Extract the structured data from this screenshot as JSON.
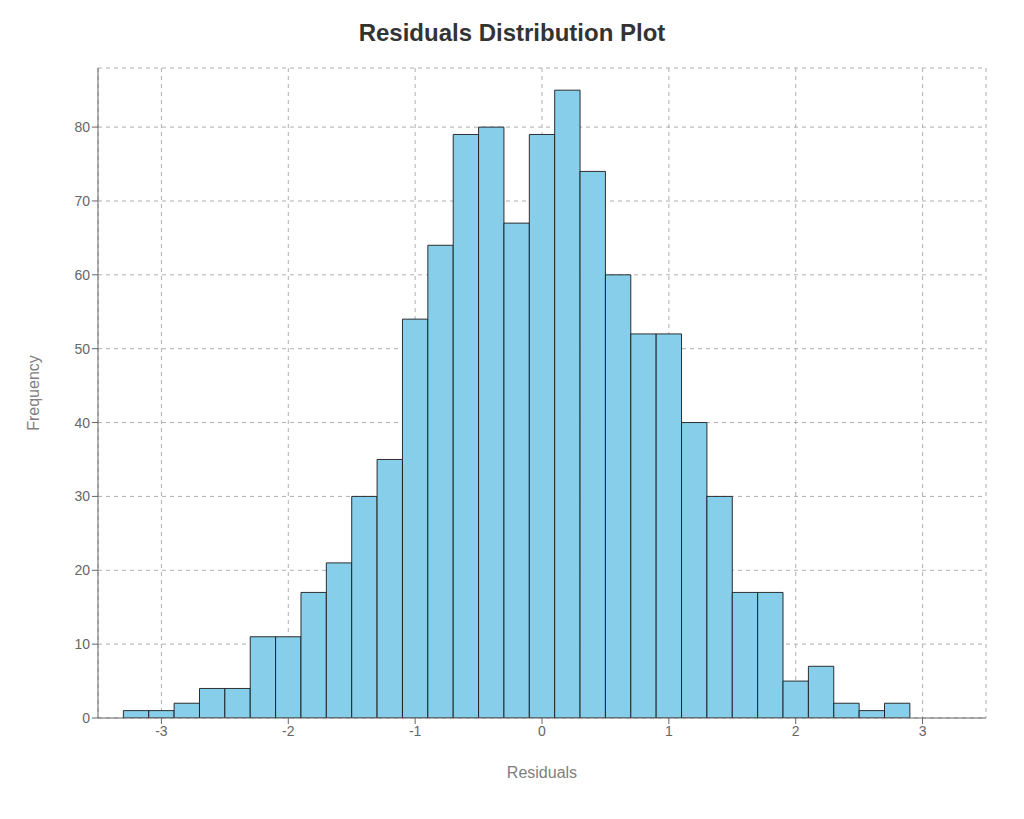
{
  "chart_data": {
    "type": "histogram",
    "title": "Residuals Distribution Plot",
    "xlabel": "Residuals",
    "ylabel": "Frequency",
    "bins": [
      -3.3,
      -3.1,
      -2.9,
      -2.7,
      -2.5,
      -2.3,
      -2.1,
      -1.9,
      -1.7,
      -1.5,
      -1.3,
      -1.1,
      -0.9,
      -0.7,
      -0.5,
      -0.3,
      -0.1,
      0.1,
      0.3,
      0.5,
      0.7,
      0.9,
      1.1,
      1.3,
      1.5,
      1.7,
      1.9,
      2.1,
      2.3,
      2.5,
      2.7,
      2.9,
      3.1
    ],
    "values": [
      1,
      1,
      2,
      4,
      4,
      11,
      11,
      17,
      21,
      30,
      35,
      54,
      64,
      79,
      80,
      67,
      79,
      85,
      74,
      60,
      52,
      52,
      40,
      30,
      17,
      17,
      5,
      7,
      2,
      1,
      2,
      0
    ],
    "color": "#87CEEB",
    "xlim": [
      -3.5,
      3.5
    ],
    "ylim": [
      0,
      88
    ],
    "xticks": [
      -3,
      -2,
      -1,
      0,
      1,
      2,
      3
    ],
    "yticks": [
      0,
      10,
      20,
      30,
      40,
      50,
      60,
      70,
      80
    ],
    "grid": true
  }
}
